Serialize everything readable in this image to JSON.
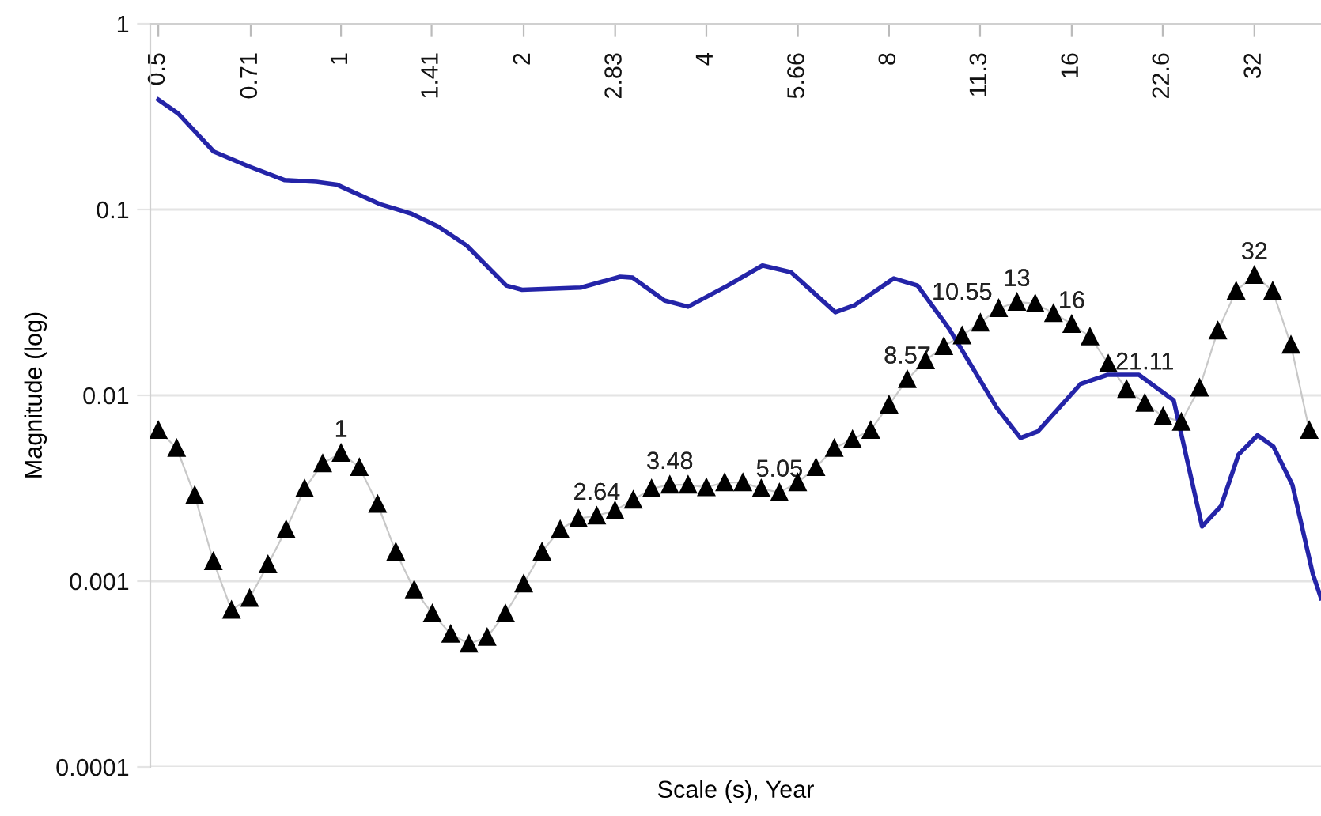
{
  "chart_data": {
    "type": "line",
    "xlabel": "Scale (s), Year",
    "ylabel": "Magnitude (log)",
    "log": "xy",
    "grid": "y",
    "xlim": [
      0.485,
      41.2
    ],
    "xticks": [
      0.5,
      0.71,
      1,
      1.41,
      2,
      2.83,
      4,
      5.66,
      8,
      11.3,
      16,
      22.6,
      32
    ],
    "ylim": [
      0.0001,
      1
    ],
    "yticks": [
      0.0001,
      0.001,
      0.01,
      0.1,
      1
    ],
    "series": [
      {
        "color": "#2424a8",
        "marker": "none",
        "line_style": "solid",
        "x": [
          0.5,
          0.54,
          0.617,
          0.704,
          0.808,
          0.911,
          0.985,
          1.158,
          1.306,
          1.446,
          1.611,
          1.872,
          1.988,
          2.483,
          2.884,
          3.025,
          3.412,
          3.732,
          4.338,
          4.949,
          5.513,
          6.525,
          7.012,
          8.146,
          8.913,
          10.05,
          12.03,
          13.17,
          14.07,
          16.54,
          18.31,
          20.65,
          23.56,
          26.24,
          28.2,
          30.13,
          32.38,
          34.39,
          36.96,
          39.95,
          41.2
        ],
        "values": [
          0.39,
          0.327,
          0.205,
          0.171,
          0.144,
          0.141,
          0.136,
          0.107,
          0.095,
          0.081,
          0.064,
          0.039,
          0.037,
          0.038,
          0.0435,
          0.043,
          0.0324,
          0.03,
          0.039,
          0.05,
          0.046,
          0.028,
          0.0305,
          0.0426,
          0.039,
          0.0228,
          0.0086,
          0.0059,
          0.0064,
          0.0115,
          0.0129,
          0.0129,
          0.0094,
          0.00197,
          0.00254,
          0.0048,
          0.0061,
          0.0053,
          0.0033,
          0.00109,
          0.00081
        ]
      },
      {
        "color": "#000000",
        "marker": "triangle",
        "line_style": "solid",
        "x": [
          0.5,
          0.536,
          0.574,
          0.616,
          0.66,
          0.707,
          0.758,
          0.812,
          0.871,
          0.933,
          1,
          1.072,
          1.149,
          1.231,
          1.32,
          1.414,
          1.516,
          1.625,
          1.741,
          1.866,
          2,
          2.144,
          2.297,
          2.462,
          2.639,
          2.828,
          3.031,
          3.249,
          3.482,
          3.732,
          4,
          4.287,
          4.595,
          4.925,
          5.278,
          5.657,
          6.063,
          6.498,
          6.964,
          7.464,
          8,
          8.574,
          9.19,
          9.849,
          10.556,
          11.314,
          12.126,
          12.996,
          13.929,
          14.929,
          16,
          17.148,
          18.379,
          19.698,
          21.112,
          22.627,
          24.251,
          25.992,
          27.858,
          29.857,
          32,
          34.3,
          36.76,
          39.4
        ],
        "values": [
          0.0065,
          0.0052,
          0.0029,
          0.00128,
          0.0007,
          0.00081,
          0.00123,
          0.0019,
          0.00315,
          0.0043,
          0.0049,
          0.0041,
          0.0026,
          0.00144,
          0.0009,
          0.00067,
          0.00052,
          0.00046,
          0.0005,
          0.00067,
          0.00097,
          0.00144,
          0.0019,
          0.00217,
          0.00225,
          0.0024,
          0.00274,
          0.00315,
          0.0033,
          0.0033,
          0.0032,
          0.0034,
          0.0034,
          0.00315,
          0.003,
          0.0034,
          0.0041,
          0.0052,
          0.0058,
          0.0065,
          0.0089,
          0.0122,
          0.0154,
          0.0184,
          0.021,
          0.0246,
          0.0294,
          0.0318,
          0.0312,
          0.0277,
          0.0242,
          0.0207,
          0.0148,
          0.0108,
          0.0091,
          0.0077,
          0.0072,
          0.011,
          0.0223,
          0.0365,
          0.0444,
          0.0365,
          0.0187,
          0.0065
        ]
      }
    ],
    "annotations": [
      {
        "text": "1",
        "x": 1,
        "y": 0.0049
      },
      {
        "text": "2.64",
        "x": 2.639,
        "y": 0.00225
      },
      {
        "text": "3.48",
        "x": 3.482,
        "y": 0.0033
      },
      {
        "text": "5.05",
        "x": 5.278,
        "y": 0.003
      },
      {
        "text": "8.57",
        "x": 8.574,
        "y": 0.0122
      },
      {
        "text": "10.55",
        "x": 10.556,
        "y": 0.021
      },
      {
        "text": "13",
        "x": 12.996,
        "y": 0.0318
      },
      {
        "text": "16",
        "x": 16,
        "y": 0.0242
      },
      {
        "text": "21.11",
        "x": 21.112,
        "y": 0.0091
      },
      {
        "text": "32",
        "x": 32,
        "y": 0.0444
      }
    ]
  }
}
